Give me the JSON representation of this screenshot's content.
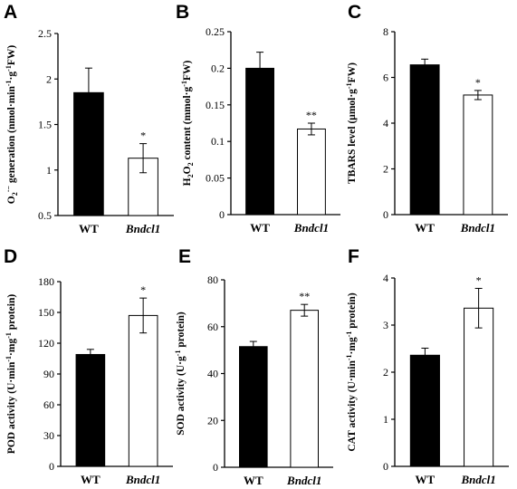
{
  "chart_data": [
    {
      "panel": "A",
      "type": "bar",
      "categories": [
        "WT",
        "Bndcl1"
      ],
      "values": [
        1.85,
        1.13
      ],
      "errors": [
        0.27,
        0.16
      ],
      "significance": [
        "",
        "*"
      ],
      "ylabel": "O2·− generation (nmol·min−1·g−1FW)",
      "ylabel_parts": [
        {
          "t": "O"
        },
        {
          "t": "2",
          "sub": true
        },
        {
          "t": "·−",
          "sup": true
        },
        {
          "t": " generation (nmol·min"
        },
        {
          "t": "-1",
          "sup": true
        },
        {
          "t": "·g"
        },
        {
          "t": "-1",
          "sup": true
        },
        {
          "t": "FW)"
        }
      ],
      "ylim": [
        0.5,
        2.5
      ],
      "yticks": [
        "0.5",
        "1",
        "1.5",
        "2",
        "2.5"
      ],
      "bar_colors": [
        "#000000",
        "#ffffff"
      ]
    },
    {
      "panel": "B",
      "type": "bar",
      "categories": [
        "WT",
        "Bndcl1"
      ],
      "values": [
        0.2,
        0.117
      ],
      "errors": [
        0.022,
        0.008
      ],
      "significance": [
        "",
        "**"
      ],
      "ylabel": "H2O2 content (mmol·g−1FW)",
      "ylabel_parts": [
        {
          "t": "H"
        },
        {
          "t": "2",
          "sub": true
        },
        {
          "t": "O"
        },
        {
          "t": "2",
          "sub": true
        },
        {
          "t": " content (mmol·g"
        },
        {
          "t": "-1",
          "sup": true
        },
        {
          "t": "FW)"
        }
      ],
      "ylim": [
        0,
        0.25
      ],
      "yticks": [
        "0",
        "0.05",
        "0.1",
        "0.15",
        "0.2",
        "0.25"
      ],
      "bar_colors": [
        "#000000",
        "#ffffff"
      ]
    },
    {
      "panel": "C",
      "type": "bar",
      "categories": [
        "WT",
        "Bndcl1"
      ],
      "values": [
        6.55,
        5.23
      ],
      "errors": [
        0.25,
        0.2
      ],
      "significance": [
        "",
        "*"
      ],
      "ylabel": "TBARS level (μmol·g−1FW)",
      "ylabel_parts": [
        {
          "t": "TBARS level (μmol·g"
        },
        {
          "t": "-1",
          "sup": true
        },
        {
          "t": "FW)"
        }
      ],
      "ylim": [
        0,
        8
      ],
      "yticks": [
        "0",
        "2",
        "4",
        "6",
        "8"
      ],
      "bar_colors": [
        "#000000",
        "#ffffff"
      ]
    },
    {
      "panel": "D",
      "type": "bar",
      "categories": [
        "WT",
        "Bndcl1"
      ],
      "values": [
        109,
        147
      ],
      "errors": [
        5,
        17
      ],
      "significance": [
        "",
        "*"
      ],
      "ylabel": "POD activity (U·min−1·mg−1 protein)",
      "ylabel_parts": [
        {
          "t": "POD activity (U·min"
        },
        {
          "t": "-1",
          "sup": true
        },
        {
          "t": "·mg"
        },
        {
          "t": "-1",
          "sup": true
        },
        {
          "t": " protein)"
        }
      ],
      "ylim": [
        0,
        180
      ],
      "yticks": [
        "0",
        "30",
        "60",
        "90",
        "120",
        "150",
        "180"
      ],
      "bar_colors": [
        "#000000",
        "#ffffff"
      ]
    },
    {
      "panel": "E",
      "type": "bar",
      "categories": [
        "WT",
        "Bndcl1"
      ],
      "values": [
        51.5,
        67
      ],
      "errors": [
        2.2,
        2.5
      ],
      "significance": [
        "",
        "**"
      ],
      "ylabel": "SOD activity (U·g−1 protein)",
      "ylabel_parts": [
        {
          "t": "SOD activity (U·g"
        },
        {
          "t": "-1",
          "sup": true
        },
        {
          "t": " protein)"
        }
      ],
      "ylim": [
        0,
        80
      ],
      "yticks": [
        "0",
        "20",
        "40",
        "60",
        "80"
      ],
      "bar_colors": [
        "#000000",
        "#ffffff"
      ]
    },
    {
      "panel": "F",
      "type": "bar",
      "categories": [
        "WT",
        "Bndcl1"
      ],
      "values": [
        2.36,
        3.36
      ],
      "errors": [
        0.15,
        0.42
      ],
      "significance": [
        "",
        "*"
      ],
      "ylabel": "CAT activity (U·min−1·mg−1 protein)",
      "ylabel_parts": [
        {
          "t": "CAT activity (U·min"
        },
        {
          "t": "-1",
          "sup": true
        },
        {
          "t": "·mg"
        },
        {
          "t": "-1",
          "sup": true
        },
        {
          "t": " protein)"
        }
      ],
      "ylim": [
        0,
        4
      ],
      "yticks": [
        "0",
        "1",
        "2",
        "3",
        "4"
      ],
      "bar_colors": [
        "#000000",
        "#ffffff"
      ]
    }
  ]
}
